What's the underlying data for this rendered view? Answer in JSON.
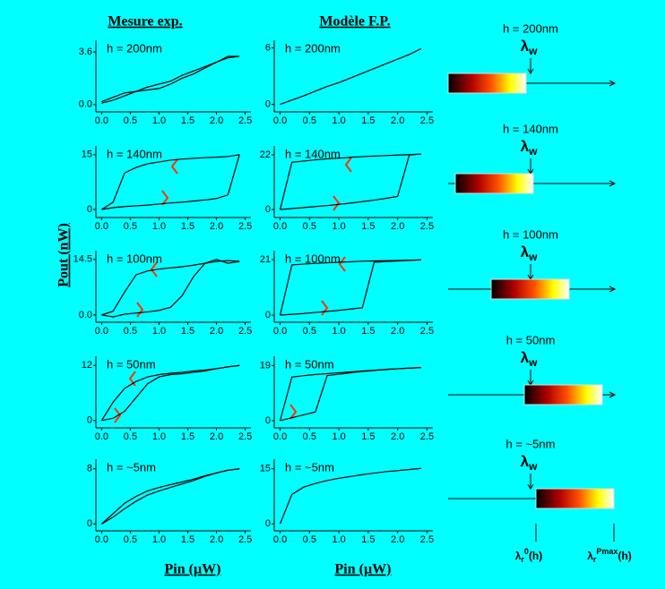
{
  "headers": [
    "Mesure exp.",
    "Modèle F.P."
  ],
  "y_label": "Pout (nW)",
  "x_labels": [
    "Pin (µW)",
    "Pin (µW)"
  ],
  "chart_data": [
    {
      "type": "line",
      "annotation": "h = 200nm",
      "x": [
        0,
        0.2,
        0.4,
        0.6,
        0.8,
        1,
        1.2,
        1.4,
        1.6,
        1.8,
        2,
        2.2,
        2.4
      ],
      "series": [
        {
          "color": "#000000",
          "values": [
            0.1,
            0.3,
            0.6,
            0.9,
            1.2,
            1.4,
            1.6,
            2.0,
            2.3,
            2.6,
            2.9,
            3.3,
            3.3
          ]
        },
        {
          "color": "#000000",
          "values": [
            0.2,
            0.5,
            0.8,
            0.9,
            1.0,
            1.1,
            1.4,
            1.8,
            2.1,
            2.5,
            2.9,
            3.2,
            3.3
          ]
        }
      ],
      "xlim": [
        -0.1,
        2.6
      ],
      "ylim": [
        -0.5,
        4.4
      ],
      "xticks": [
        {
          "value": 0,
          "label": "0.0"
        },
        0.5,
        {
          "value": 1,
          "label": "1.0"
        },
        1.5,
        {
          "value": 2,
          "label": "2.0"
        },
        2.5
      ],
      "yticks": [
        {
          "value": 0,
          "label": "0.0"
        },
        3.6
      ]
    },
    {
      "type": "line",
      "annotation": "h = 200nm",
      "x": [
        0,
        0.2,
        0.4,
        0.6,
        0.8,
        1,
        1.2,
        1.4,
        1.6,
        1.8,
        2,
        2.2,
        2.4
      ],
      "series": [
        {
          "color": "#000000",
          "values": [
            0,
            0.45,
            0.9,
            1.4,
            1.9,
            2.3,
            2.8,
            3.3,
            3.8,
            4.3,
            4.8,
            5.3,
            5.9
          ]
        }
      ],
      "xlim": [
        -0.1,
        2.6
      ],
      "ylim": [
        -0.8,
        6.8
      ],
      "xticks": [
        {
          "value": 0,
          "label": "0.0"
        },
        0.5,
        {
          "value": 1,
          "label": "1.0"
        },
        1.5,
        {
          "value": 2,
          "label": "2.0"
        },
        2.5
      ],
      "yticks": [
        0,
        6
      ]
    },
    {
      "type": "line",
      "annotation": "h = 140nm",
      "x": [
        0,
        0.2,
        0.4,
        0.6,
        0.8,
        1,
        1.2,
        1.4,
        1.6,
        1.8,
        2,
        2.2,
        2.4
      ],
      "series": [
        {
          "color": "#000000",
          "values": [
            0,
            0.5,
            0.8,
            1,
            1.2,
            1.5,
            1.8,
            2.0,
            2.3,
            2.6,
            3,
            4,
            15
          ]
        },
        {
          "color": "#000000",
          "values": [
            0,
            2,
            10,
            11.5,
            12.5,
            13,
            13.5,
            13.8,
            14,
            14.2,
            14.3,
            14.5,
            15
          ]
        }
      ],
      "xlim": [
        -0.1,
        2.6
      ],
      "ylim": [
        -2.2,
        17.4
      ],
      "xticks": [
        {
          "value": 0,
          "label": "0.0"
        },
        0.5,
        {
          "value": 1,
          "label": "1.0"
        },
        1.5,
        {
          "value": 2,
          "label": "2.0"
        },
        2.5
      ],
      "yticks": [
        0,
        15
      ]
    },
    {
      "type": "line",
      "annotation": "h = 140nm",
      "x": [
        0,
        0.2,
        0.4,
        0.6,
        0.8,
        1,
        1.2,
        1.4,
        1.6,
        1.8,
        2,
        2.2,
        2.4
      ],
      "series": [
        {
          "color": "#000000",
          "values": [
            0,
            0.4,
            0.8,
            1.2,
            1.6,
            2.1,
            2.6,
            3.2,
            3.8,
            4.5,
            5.3,
            22,
            22.3
          ]
        },
        {
          "color": "#000000",
          "values": [
            0,
            19,
            19.5,
            20,
            20.4,
            20.7,
            21,
            21.3,
            21.5,
            21.7,
            21.9,
            22.1,
            22.3
          ]
        }
      ],
      "xlim": [
        -0.1,
        2.6
      ],
      "ylim": [
        -3.2,
        25.6
      ],
      "xticks": [
        {
          "value": 0,
          "label": "0.0"
        },
        0.5,
        {
          "value": 1,
          "label": "1.0"
        },
        1.5,
        {
          "value": 2,
          "label": "2.0"
        },
        2.5
      ],
      "yticks": [
        0,
        22
      ]
    },
    {
      "type": "line",
      "annotation": "h = 100nm",
      "x": [
        0,
        0.2,
        0.4,
        0.6,
        0.8,
        1,
        1.2,
        1.4,
        1.6,
        1.8,
        2,
        2.2,
        2.4
      ],
      "series": [
        {
          "color": "#000000",
          "values": [
            0,
            1,
            6,
            10.5,
            11.5,
            12,
            12.3,
            12.6,
            13,
            13.5,
            14,
            14.2,
            14
          ]
        },
        {
          "color": "#000000",
          "values": [
            0,
            -0.5,
            0.2,
            0.5,
            0.8,
            1.2,
            2,
            5,
            10,
            13.5,
            14.5,
            13.5,
            14
          ]
        }
      ],
      "xlim": [
        -0.1,
        2.6
      ],
      "ylim": [
        -1.9,
        16.8
      ],
      "xticks": [
        {
          "value": 0,
          "label": "0.0"
        },
        0.5,
        {
          "value": 1,
          "label": "1.0"
        },
        1.5,
        {
          "value": 2,
          "label": "2.0"
        },
        2.5
      ],
      "yticks": [
        {
          "value": 0,
          "label": "0.0"
        },
        14.5
      ]
    },
    {
      "type": "line",
      "annotation": "h = 100nm",
      "x": [
        0,
        0.2,
        0.4,
        0.6,
        0.8,
        1,
        1.2,
        1.4,
        1.6,
        1.8,
        2,
        2.2,
        2.4
      ],
      "series": [
        {
          "color": "#000000",
          "values": [
            0,
            0.3,
            0.6,
            1,
            1.4,
            1.8,
            2.3,
            2.8,
            20,
            20.3,
            20.5,
            20.7,
            20.9
          ]
        },
        {
          "color": "#000000",
          "values": [
            0,
            19,
            19.3,
            19.6,
            19.8,
            20,
            20.2,
            20.4,
            20.5,
            20.6,
            20.7,
            20.8,
            20.9
          ]
        }
      ],
      "xlim": [
        -0.1,
        2.6
      ],
      "ylim": [
        -2.7,
        24.4
      ],
      "xticks": [
        {
          "value": 0,
          "label": "0.0"
        },
        0.5,
        {
          "value": 1,
          "label": "1.0"
        },
        1.5,
        {
          "value": 2,
          "label": "2.0"
        },
        2.5
      ],
      "yticks": [
        0,
        21
      ]
    },
    {
      "type": "line",
      "annotation": "h = 50nm",
      "x": [
        0,
        0.2,
        0.4,
        0.6,
        0.8,
        1,
        1.2,
        1.4,
        1.6,
        1.8,
        2,
        2.2,
        2.4
      ],
      "series": [
        {
          "color": "#000000",
          "values": [
            0,
            4,
            7,
            8.5,
            9.5,
            10,
            10.3,
            10.5,
            10.8,
            11,
            11.3,
            11.7,
            12
          ]
        },
        {
          "color": "#000000",
          "values": [
            0,
            0.5,
            2,
            5,
            8,
            9.5,
            10,
            10.2,
            10.5,
            10.8,
            11.3,
            11.7,
            12
          ]
        }
      ],
      "xlim": [
        -0.1,
        2.6
      ],
      "ylim": [
        -1.6,
        14
      ],
      "xticks": [
        {
          "value": 0,
          "label": "0.0"
        },
        0.5,
        {
          "value": 1,
          "label": "1.0"
        },
        1.5,
        {
          "value": 2,
          "label": "2.0"
        },
        2.5
      ],
      "yticks": [
        0,
        12
      ]
    },
    {
      "type": "line",
      "annotation": "h = 50nm",
      "x": [
        0,
        0.2,
        0.4,
        0.6,
        0.8,
        1,
        1.2,
        1.4,
        1.6,
        1.8,
        2,
        2.2,
        2.4
      ],
      "series": [
        {
          "color": "#000000",
          "values": [
            0,
            1,
            2,
            3,
            15.5,
            16,
            16.5,
            17,
            17.3,
            17.6,
            17.9,
            18.1,
            18.3
          ]
        },
        {
          "color": "#000000",
          "values": [
            0,
            15,
            15.5,
            15.9,
            16.2,
            16.5,
            16.8,
            17.1,
            17.4,
            17.7,
            17.9,
            18.1,
            18.3
          ]
        }
      ],
      "xlim": [
        -0.1,
        2.6
      ],
      "ylim": [
        -2.5,
        22.2
      ],
      "xticks": [
        {
          "value": 0,
          "label": "0.0"
        },
        0.5,
        {
          "value": 1,
          "label": "1.0"
        },
        1.5,
        {
          "value": 2,
          "label": "2.0"
        },
        2.5
      ],
      "yticks": [
        0,
        19
      ]
    },
    {
      "type": "line",
      "annotation": "h = ~5nm",
      "x": [
        0,
        0.2,
        0.4,
        0.6,
        0.8,
        1,
        1.2,
        1.4,
        1.6,
        1.8,
        2,
        2.2,
        2.4
      ],
      "series": [
        {
          "color": "#000000",
          "values": [
            0,
            1.5,
            3,
            4,
            4.8,
            5.3,
            5.7,
            6.1,
            6.5,
            7,
            7.4,
            7.8,
            8
          ]
        },
        {
          "color": "#000000",
          "values": [
            0,
            1,
            2.2,
            3.3,
            4.2,
            4.8,
            5.3,
            5.8,
            6.3,
            6.9,
            7.4,
            7.8,
            8
          ]
        }
      ],
      "xlim": [
        -0.1,
        2.6
      ],
      "ylim": [
        -1,
        9.4
      ],
      "xticks": [
        {
          "value": 0,
          "label": "0.0"
        },
        0.5,
        {
          "value": 1,
          "label": "1.0"
        },
        1.5,
        {
          "value": 2,
          "label": "2.0"
        },
        2.5
      ],
      "yticks": [
        0,
        8
      ]
    },
    {
      "type": "line",
      "annotation": "h = ~5nm",
      "x": [
        0,
        0.2,
        0.4,
        0.6,
        0.8,
        1,
        1.2,
        1.4,
        1.6,
        1.8,
        2,
        2.2,
        2.4
      ],
      "series": [
        {
          "color": "#000000",
          "values": [
            0,
            8,
            10,
            11,
            11.8,
            12.4,
            12.9,
            13.4,
            13.8,
            14.2,
            14.5,
            14.8,
            15.1
          ]
        }
      ],
      "xlim": [
        -0.1,
        2.6
      ],
      "ylim": [
        -1.9,
        17.6
      ],
      "xticks": [
        {
          "value": 0,
          "label": "0.0"
        },
        0.5,
        {
          "value": 1,
          "label": "1.0"
        },
        1.5,
        {
          "value": 2,
          "label": "2.0"
        },
        2.5
      ],
      "yticks": [
        0,
        15
      ]
    }
  ],
  "diagrams": [
    {
      "label": "h = 200nm",
      "lambda": "λ",
      "sub": "w"
    },
    {
      "label": "h = 140nm",
      "lambda": "λ",
      "sub": "w"
    },
    {
      "label": "h = 100nm",
      "lambda": "λ",
      "sub": "w"
    },
    {
      "label": "h = 50nm",
      "lambda": "λ",
      "sub": "w"
    },
    {
      "label": "h = ~5nm",
      "lambda": "λ",
      "sub": "w"
    }
  ],
  "bottom_labels": [
    {
      "symbol": "λ",
      "sub": "r",
      "sup": "0",
      "suffix": "(h)"
    },
    {
      "symbol": "λ",
      "sub": "r",
      "sup": "Pmax",
      "suffix": "(h)"
    }
  ]
}
